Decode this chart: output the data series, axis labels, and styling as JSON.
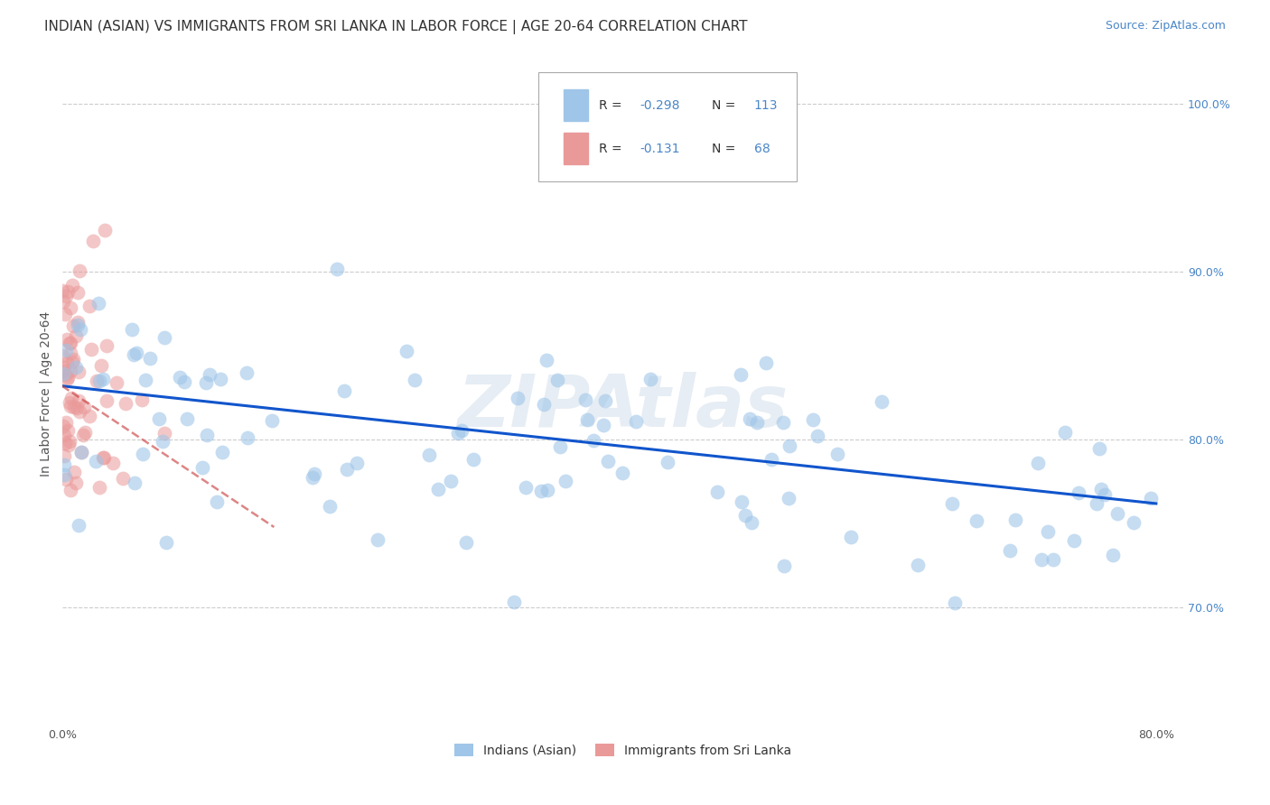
{
  "title": "INDIAN (ASIAN) VS IMMIGRANTS FROM SRI LANKA IN LABOR FORCE | AGE 20-64 CORRELATION CHART",
  "source": "Source: ZipAtlas.com",
  "ylabel": "In Labor Force | Age 20-64",
  "xlim": [
    0.0,
    0.82
  ],
  "ylim": [
    0.63,
    1.025
  ],
  "xticks": [
    0.0,
    0.1,
    0.2,
    0.3,
    0.4,
    0.5,
    0.6,
    0.7,
    0.8
  ],
  "xticklabels": [
    "0.0%",
    "",
    "",
    "",
    "",
    "",
    "",
    "",
    "80.0%"
  ],
  "yticks_right": [
    0.7,
    0.8,
    0.9,
    1.0
  ],
  "yticklabels_right": [
    "70.0%",
    "80.0%",
    "90.0%",
    "100.0%"
  ],
  "grid_yticks": [
    0.7,
    0.8,
    0.9,
    1.0
  ],
  "blue_scatter_color": "#9fc5e8",
  "pink_scatter_color": "#ea9999",
  "blue_line_color": "#1155cc",
  "pink_line_color": "#cc4444",
  "right_ytick_color": "#4a86c8",
  "grid_color": "#cccccc",
  "background_color": "#ffffff",
  "watermark": "ZIPAtlas",
  "label_blue": "Indians (Asian)",
  "label_pink": "Immigrants from Sri Lanka",
  "blue_line_x0": 0.0,
  "blue_line_x1": 0.8,
  "blue_line_y0": 0.832,
  "blue_line_y1": 0.762,
  "pink_line_x0": 0.0,
  "pink_line_x1": 0.155,
  "pink_line_y0": 0.832,
  "pink_line_y1": 0.748,
  "title_fontsize": 11,
  "axis_label_fontsize": 10,
  "tick_fontsize": 9,
  "source_fontsize": 9
}
